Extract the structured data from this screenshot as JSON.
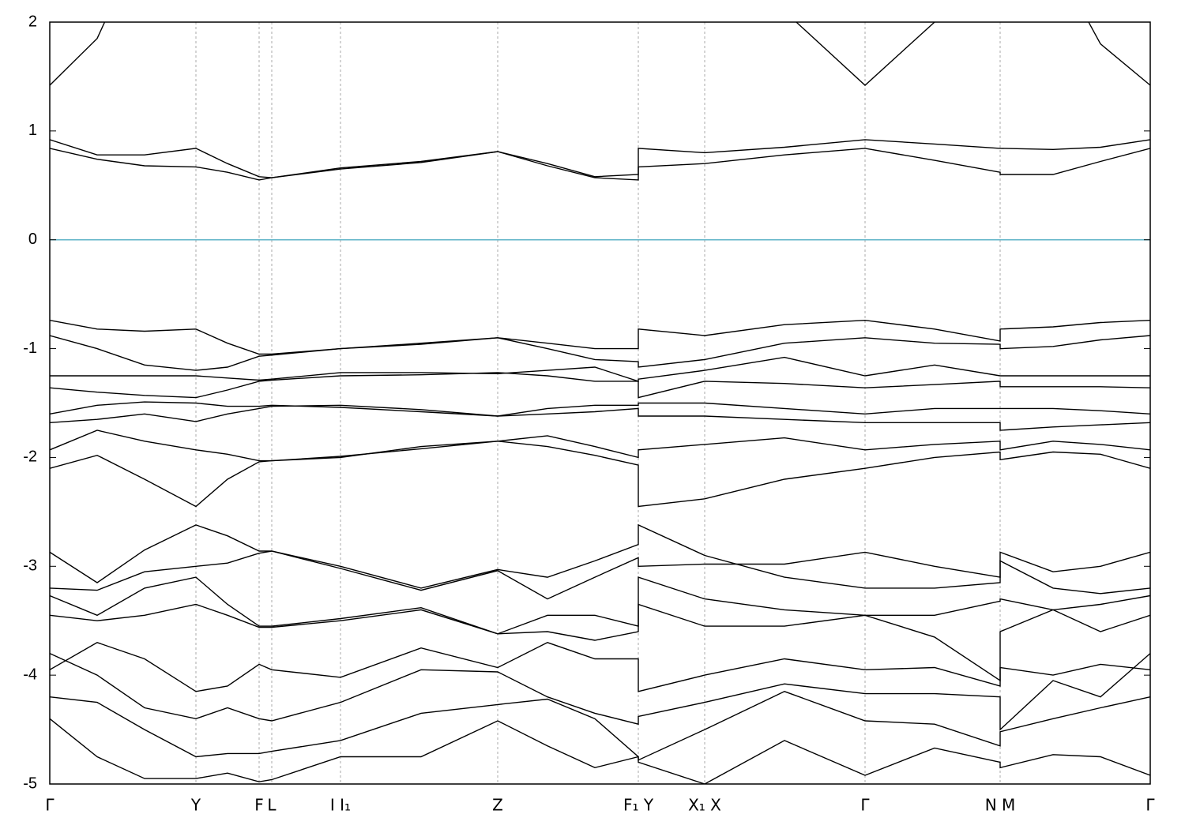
{
  "chart_data": {
    "type": "line",
    "x": [
      0,
      0.6,
      1.2,
      1.85,
      2.25,
      2.65,
      2.81,
      3.68,
      4.7,
      5.67,
      6.3,
      6.9,
      7.45,
      7.45,
      8.29,
      9.3,
      10.32,
      11.2,
      12.03,
      12.03,
      12.7,
      13.3,
      13.93
    ],
    "xlim": [
      0,
      13.93
    ],
    "xticks": [
      {
        "value": 0,
        "label": "Γ"
      },
      {
        "value": 1.85,
        "label": "Y"
      },
      {
        "value": 2.65,
        "label": "F"
      },
      {
        "value": 2.81,
        "label": "L"
      },
      {
        "value": 3.68,
        "label": "I  I₁"
      },
      {
        "value": 5.67,
        "label": "Z"
      },
      {
        "value": 7.45,
        "label": "F₁ Y"
      },
      {
        "value": 8.29,
        "label": "X₁ X"
      },
      {
        "value": 10.32,
        "label": "Γ"
      },
      {
        "value": 12.03,
        "label": "N M"
      },
      {
        "value": 13.93,
        "label": "Γ"
      }
    ],
    "ylim": [
      -5,
      2
    ],
    "yticks": [
      -5,
      -4,
      -3,
      -2,
      -1,
      0,
      1,
      2
    ],
    "grid": true,
    "color": "#000000",
    "fermi_level": 0,
    "fermi_color": "#5fb4c8",
    "series": [
      {
        "values": [
          1.42,
          1.85,
          2.8,
          null,
          null,
          null,
          null,
          null,
          null,
          null,
          null,
          null,
          null,
          null,
          null,
          2.1,
          1.42,
          2.0,
          null,
          null,
          2.6,
          1.8,
          1.42
        ]
      },
      {
        "values": [
          0.92,
          0.78,
          0.78,
          0.84,
          0.7,
          0.58,
          0.57,
          0.66,
          0.72,
          0.81,
          0.7,
          0.58,
          0.6,
          0.84,
          0.8,
          0.85,
          0.92,
          0.88,
          0.84,
          0.84,
          0.83,
          0.85,
          0.92
        ]
      },
      {
        "values": [
          0.84,
          0.74,
          0.68,
          0.67,
          0.62,
          0.55,
          0.57,
          0.65,
          0.71,
          0.81,
          0.68,
          0.57,
          0.55,
          0.67,
          0.7,
          0.78,
          0.84,
          0.73,
          0.62,
          0.6,
          0.6,
          0.72,
          0.84
        ]
      },
      {
        "values": [
          -0.74,
          -0.82,
          -0.84,
          -0.82,
          -0.95,
          -1.05,
          -1.05,
          -1.0,
          -0.95,
          -0.9,
          -0.95,
          -1.0,
          -1.0,
          -0.82,
          -0.88,
          -0.78,
          -0.74,
          -0.82,
          -0.93,
          -0.82,
          -0.8,
          -0.76,
          -0.74
        ]
      },
      {
        "values": [
          -0.88,
          -1.0,
          -1.15,
          -1.2,
          -1.17,
          -1.07,
          -1.06,
          -1.0,
          -0.96,
          -0.9,
          -1.0,
          -1.1,
          -1.12,
          -1.17,
          -1.1,
          -0.95,
          -0.9,
          -0.95,
          -0.96,
          -1.0,
          -0.98,
          -0.92,
          -0.88
        ]
      },
      {
        "values": [
          -1.25,
          -1.25,
          -1.25,
          -1.25,
          -1.27,
          -1.29,
          -1.28,
          -1.22,
          -1.22,
          -1.23,
          -1.2,
          -1.17,
          -1.3,
          -1.28,
          -1.2,
          -1.08,
          -1.25,
          -1.15,
          -1.25,
          -1.25,
          -1.25,
          -1.25,
          -1.25
        ]
      },
      {
        "values": [
          -1.36,
          -1.4,
          -1.43,
          -1.45,
          -1.38,
          -1.3,
          -1.29,
          -1.25,
          -1.24,
          -1.22,
          -1.25,
          -1.3,
          -1.3,
          -1.45,
          -1.3,
          -1.32,
          -1.36,
          -1.33,
          -1.3,
          -1.35,
          -1.35,
          -1.35,
          -1.36
        ]
      },
      {
        "values": [
          -1.6,
          -1.52,
          -1.49,
          -1.5,
          -1.53,
          -1.53,
          -1.52,
          -1.54,
          -1.58,
          -1.62,
          -1.55,
          -1.52,
          -1.52,
          -1.5,
          -1.5,
          -1.55,
          -1.6,
          -1.55,
          -1.55,
          -1.55,
          -1.55,
          -1.57,
          -1.6
        ]
      },
      {
        "values": [
          -1.68,
          -1.65,
          -1.6,
          -1.67,
          -1.6,
          -1.55,
          -1.53,
          -1.52,
          -1.56,
          -1.62,
          -1.6,
          -1.58,
          -1.55,
          -1.62,
          -1.62,
          -1.65,
          -1.68,
          -1.68,
          -1.68,
          -1.75,
          -1.72,
          -1.7,
          -1.68
        ]
      },
      {
        "values": [
          -1.93,
          -1.75,
          -1.85,
          -1.93,
          -1.97,
          -2.03,
          -2.03,
          -2.0,
          -1.9,
          -1.85,
          -1.8,
          -1.9,
          -2.0,
          -1.93,
          -1.88,
          -1.82,
          -1.93,
          -1.88,
          -1.85,
          -1.93,
          -1.85,
          -1.88,
          -1.93
        ]
      },
      {
        "values": [
          -2.1,
          -1.98,
          -2.2,
          -2.45,
          -2.2,
          -2.04,
          -2.03,
          -1.99,
          -1.92,
          -1.85,
          -1.9,
          -1.98,
          -2.07,
          -2.45,
          -2.38,
          -2.2,
          -2.1,
          -2.0,
          -1.95,
          -2.02,
          -1.95,
          -1.97,
          -2.1
        ]
      },
      {
        "values": [
          -2.87,
          -3.15,
          -2.85,
          -2.62,
          -2.72,
          -2.86,
          -2.86,
          -3.0,
          -3.2,
          -3.03,
          -3.1,
          -2.95,
          -2.8,
          -2.62,
          -2.9,
          -3.1,
          -3.2,
          -3.2,
          -3.15,
          -2.87,
          -3.05,
          -3.0,
          -2.87
        ]
      },
      {
        "values": [
          -3.2,
          -3.22,
          -3.05,
          -3.0,
          -2.97,
          -2.88,
          -2.86,
          -3.02,
          -3.22,
          -3.04,
          -3.3,
          -3.1,
          -2.92,
          -3.0,
          -2.98,
          -2.98,
          -2.87,
          -3.0,
          -3.1,
          -2.95,
          -3.2,
          -3.25,
          -3.2
        ]
      },
      {
        "values": [
          -3.27,
          -3.45,
          -3.2,
          -3.1,
          -3.35,
          -3.55,
          -3.55,
          -3.48,
          -3.38,
          -3.62,
          -3.45,
          -3.45,
          -3.55,
          -3.1,
          -3.3,
          -3.4,
          -3.45,
          -3.45,
          -3.32,
          -3.3,
          -3.4,
          -3.35,
          -3.27
        ]
      },
      {
        "values": [
          -3.45,
          -3.5,
          -3.45,
          -3.35,
          -3.45,
          -3.56,
          -3.56,
          -3.5,
          -3.4,
          -3.62,
          -3.6,
          -3.68,
          -3.6,
          -3.35,
          -3.55,
          -3.55,
          -3.45,
          -3.65,
          -4.05,
          -3.6,
          -3.4,
          -3.6,
          -3.45
        ]
      },
      {
        "values": [
          -3.95,
          -3.7,
          -3.85,
          -4.15,
          -4.1,
          -3.9,
          -3.95,
          -4.02,
          -3.75,
          -3.93,
          -3.7,
          -3.85,
          -3.85,
          -4.15,
          -4.0,
          -3.85,
          -3.95,
          -3.93,
          -4.1,
          -3.93,
          -4.0,
          -3.9,
          -3.95
        ]
      },
      {
        "values": [
          -3.8,
          -4.0,
          -4.3,
          -4.4,
          -4.3,
          -4.4,
          -4.42,
          -4.25,
          -3.95,
          -3.97,
          -4.2,
          -4.35,
          -4.45,
          -4.38,
          -4.25,
          -4.08,
          -4.17,
          -4.17,
          -4.2,
          -4.5,
          -4.05,
          -4.2,
          -3.8
        ]
      },
      {
        "values": [
          -4.2,
          -4.25,
          -4.5,
          -4.75,
          -4.72,
          -4.72,
          -4.7,
          -4.6,
          -4.35,
          -4.27,
          -4.22,
          -4.4,
          -4.75,
          -4.78,
          -4.5,
          -4.15,
          -4.42,
          -4.45,
          -4.65,
          -4.52,
          -4.4,
          -4.3,
          -4.2
        ]
      },
      {
        "values": [
          -4.4,
          -4.75,
          -4.95,
          -4.95,
          -4.9,
          -4.98,
          -4.96,
          -4.75,
          -4.75,
          -4.42,
          -4.65,
          -4.85,
          -4.75,
          -4.8,
          -5.0,
          -4.6,
          -4.92,
          -4.67,
          -4.8,
          -4.85,
          -4.73,
          -4.75,
          -4.92
        ]
      }
    ]
  }
}
